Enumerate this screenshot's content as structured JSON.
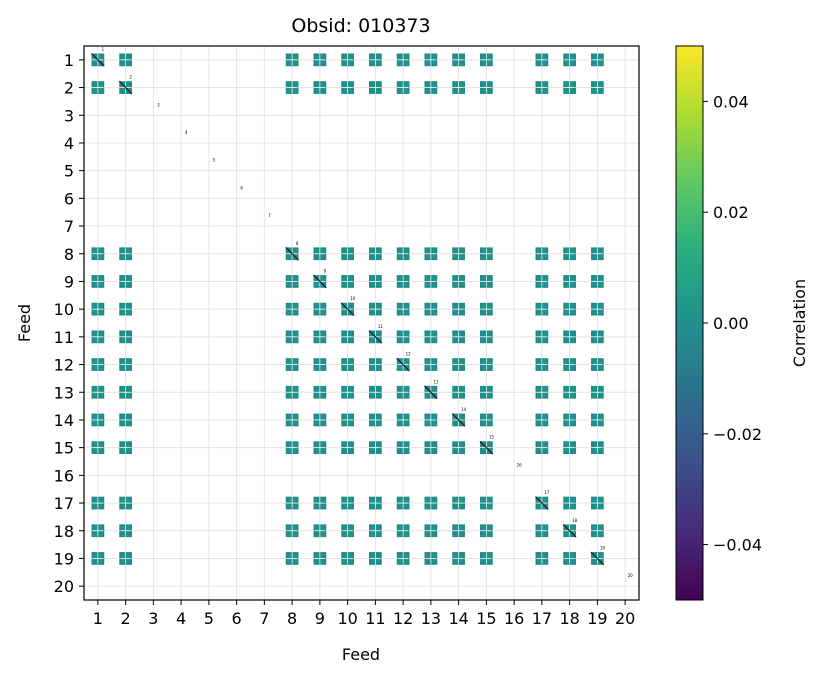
{
  "chart_data": {
    "type": "heatmap",
    "title": "Obsid: 010373",
    "xlabel": "Feed",
    "ylabel": "Feed",
    "x_ticks": [
      "1",
      "2",
      "3",
      "4",
      "5",
      "6",
      "7",
      "8",
      "9",
      "10",
      "11",
      "12",
      "13",
      "14",
      "15",
      "16",
      "17",
      "18",
      "19",
      "20"
    ],
    "y_ticks": [
      "1",
      "2",
      "3",
      "4",
      "5",
      "6",
      "7",
      "8",
      "9",
      "10",
      "11",
      "12",
      "13",
      "14",
      "15",
      "16",
      "17",
      "18",
      "19",
      "20"
    ],
    "feeds": [
      1,
      2,
      3,
      4,
      5,
      6,
      7,
      8,
      9,
      10,
      11,
      12,
      13,
      14,
      15,
      16,
      17,
      18,
      19,
      20
    ],
    "active_feeds": [
      1,
      2,
      8,
      9,
      10,
      11,
      12,
      13,
      14,
      15,
      17,
      18,
      19
    ],
    "diagonal_labels": [
      "1",
      "2",
      "3",
      "4",
      "5",
      "6",
      "7",
      "8",
      "9",
      "10",
      "11",
      "12",
      "13",
      "14",
      "15",
      "16",
      "17",
      "18",
      "19",
      "20"
    ],
    "colorbar": {
      "label": "Correlation",
      "colormap": "viridis",
      "vmin": -0.05,
      "vmax": 0.05,
      "ticks": [
        0.04,
        0.02,
        0.0,
        -0.02,
        -0.04
      ],
      "tick_labels": [
        "0.04",
        "0.02",
        "0.00",
        "−0.02",
        "−0.04"
      ]
    },
    "grid": true,
    "cell_value": 0.0,
    "colors": {
      "cell": "#21918c",
      "cell_dark": "#1a7a76",
      "diagonal": "#222222",
      "grid": "#e4e4e4"
    }
  }
}
